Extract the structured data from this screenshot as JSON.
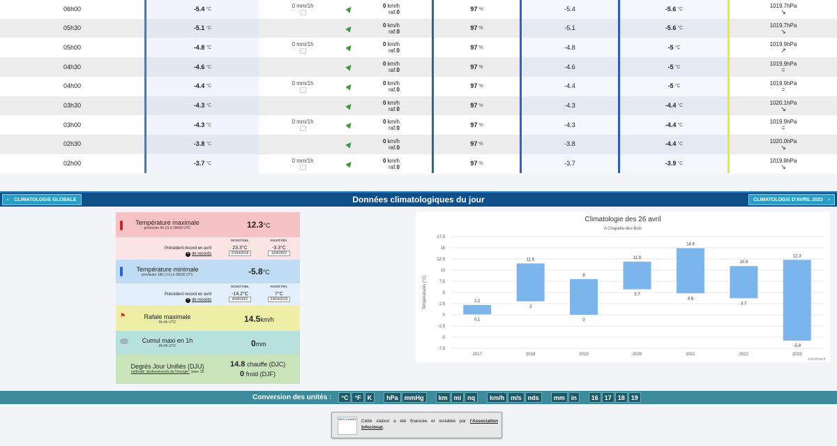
{
  "table": {
    "rows": [
      {
        "time": "06h00",
        "temp": "-5.4",
        "rain": "0 mm/1h",
        "wind": "0",
        "raf": "0",
        "hum": "97",
        "dew": "-5.4",
        "ressenti": "-5.6",
        "press": "1019.7",
        "trend": "↘"
      },
      {
        "time": "05h30",
        "temp": "-5.1",
        "rain": "",
        "wind": "0",
        "raf": "0",
        "hum": "97",
        "dew": "-5.1",
        "ressenti": "-5.6",
        "press": "1019.7",
        "trend": "↘"
      },
      {
        "time": "05h00",
        "temp": "-4.8",
        "rain": "0 mm/1h",
        "wind": "0",
        "raf": "0",
        "hum": "97",
        "dew": "-4.8",
        "ressenti": "-5",
        "press": "1019.9",
        "trend": "↗"
      },
      {
        "time": "04h30",
        "temp": "-4.6",
        "rain": "",
        "wind": "0",
        "raf": "0",
        "hum": "97",
        "dew": "-4.6",
        "ressenti": "-5",
        "press": "1019.9",
        "trend": "="
      },
      {
        "time": "04h00",
        "temp": "-4.4",
        "rain": "0 mm/1h",
        "wind": "0",
        "raf": "0",
        "hum": "97",
        "dew": "-4.4",
        "ressenti": "-5",
        "press": "1019.9",
        "trend": "="
      },
      {
        "time": "03h30",
        "temp": "-4.3",
        "rain": "",
        "wind": "0",
        "raf": "0",
        "hum": "97",
        "dew": "-4.3",
        "ressenti": "-4.4",
        "press": "1020.1",
        "trend": "↘"
      },
      {
        "time": "03h00",
        "temp": "-4.3",
        "rain": "0 mm/1h",
        "wind": "0",
        "raf": "0",
        "hum": "97",
        "dew": "-4.3",
        "ressenti": "-4.4",
        "press": "1019.9",
        "trend": "="
      },
      {
        "time": "02h30",
        "temp": "-3.8",
        "rain": "",
        "wind": "0",
        "raf": "0",
        "hum": "97",
        "dew": "-3.8",
        "ressenti": "-4.4",
        "press": "1020.0",
        "trend": "↘"
      },
      {
        "time": "02h00",
        "temp": "-3.7",
        "rain": "0 mm/1h",
        "wind": "0",
        "raf": "0",
        "hum": "97",
        "dew": "-3.7",
        "ressenti": "-3.9",
        "press": "1019.8",
        "trend": "↘"
      }
    ],
    "units": {
      "temp": "°C",
      "wind": "km/h",
      "raf_prefix": "raf.",
      "hum": "%",
      "press": "hPa"
    }
  },
  "section": {
    "title": "Données climatologiques du jour",
    "btn_left": "CLIMATOLOGIE GLOBALE",
    "btn_right": "CLIMATOLOGIE D'AVRIL 2023"
  },
  "clim": {
    "tmax": {
      "label": "Température maximale",
      "sub": "provisoire 6h (J) à 19h50 UTC",
      "value": "12.3",
      "unit": "°C"
    },
    "tmax_rec": {
      "label": "Précédent record en avril",
      "link": "de records",
      "max_head": "record max.",
      "max_val": "23.3°C",
      "max_date": "21/04/2018",
      "min_head": "record min.",
      "min_val": "-3.3°C",
      "min_date": "1/04/2022"
    },
    "tmin": {
      "label": "Température minimale",
      "sub": "provisoire 18h (J-1) à 18h00 UTC",
      "value": "-5.8",
      "unit": "°C"
    },
    "tmin_rec": {
      "label": "Précédent record en avril",
      "link": "de records",
      "max_head": "record max.",
      "max_val": "-14.2°C",
      "max_date": "4/04/2022",
      "min_head": "record min.",
      "min_val": "7°C",
      "min_date": "23/04/2019"
    },
    "gust": {
      "label": "Rafale maximale",
      "sub": "0h-0h UTC",
      "value": "14.5",
      "unit": "km/h"
    },
    "rain": {
      "label": "Cumul maxi en 1h",
      "sub": "0h-0h UTC",
      "value": "0",
      "unit": "mm"
    },
    "dju": {
      "label": "Degrés Jour Unifiés (DJU)",
      "sub_link": "méthode \"professionnels de l'énergie\"",
      "sub_rest": ", base 18",
      "hot_val": "14.8",
      "hot_label": "chauffe (DJC)",
      "cold_val": "0",
      "cold_label": "froid (DJF)"
    }
  },
  "chart_data": {
    "type": "bar",
    "title": "Climatologie des 26 avril",
    "subtitle": "A Chapelle-des-Bois",
    "ylabel": "Températures (°C)",
    "categories": [
      "2017",
      "2018",
      "2019",
      "2020",
      "2021",
      "2022",
      "2023"
    ],
    "series": [
      {
        "values_low": [
          0.1,
          3,
          0,
          5.7,
          4.8,
          3.7,
          -5.8
        ],
        "values_high": [
          2.2,
          11.5,
          8,
          11.9,
          14.9,
          10.9,
          12.3
        ]
      }
    ],
    "ylim": [
      -7.5,
      17.5
    ],
    "yticks": [
      "17.5",
      "15",
      "12.5",
      "10",
      "7.5",
      "5",
      "2.5",
      "0",
      "-2.5",
      "-5",
      "-7.5"
    ],
    "credit": "infoclimat.fr",
    "color": "#7cb5ec"
  },
  "conversion": {
    "label": "Conversion des unités :",
    "groups": [
      [
        "°C",
        "°F",
        "K"
      ],
      [
        "hPa",
        "mmHg"
      ],
      [
        "km",
        "mi",
        "nq"
      ],
      [
        "km/h",
        "m/s",
        "nds"
      ],
      [
        "mm",
        "in"
      ],
      [
        "16",
        "17",
        "18",
        "19"
      ]
    ]
  },
  "footer": {
    "text": "Cette station a été financée et installée par",
    "link": "l'Association Infoclimat",
    "suffix": "."
  }
}
